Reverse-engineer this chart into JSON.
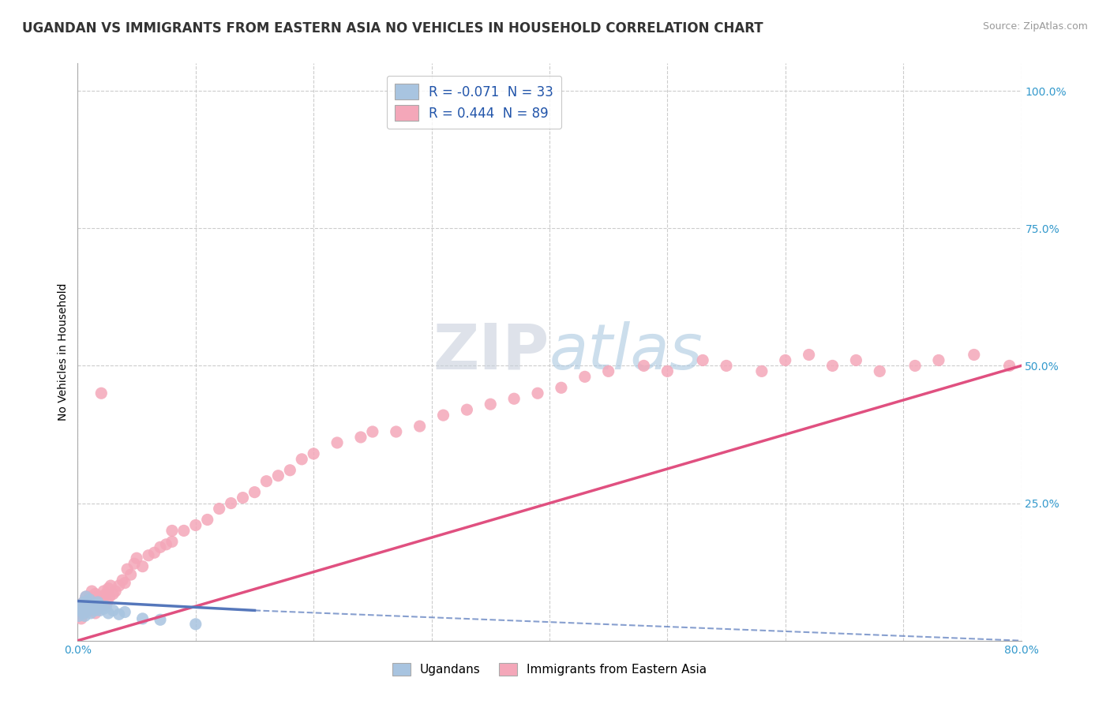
{
  "title": "UGANDAN VS IMMIGRANTS FROM EASTERN ASIA NO VEHICLES IN HOUSEHOLD CORRELATION CHART",
  "source_text": "Source: ZipAtlas.com",
  "ylabel": "No Vehicles in Household",
  "xlim": [
    0.0,
    0.8
  ],
  "ylim": [
    0.0,
    1.05
  ],
  "ugandan_R": -0.071,
  "ugandan_N": 33,
  "eastern_asia_R": 0.444,
  "eastern_asia_N": 89,
  "ugandan_color": "#a8c4e0",
  "eastern_asia_color": "#f4a7b9",
  "ugandan_line_color": "#5577bb",
  "eastern_asia_line_color": "#e05080",
  "background_color": "#ffffff",
  "grid_color": "#cccccc",
  "watermark_color": "#d0d8e8",
  "ugandan_x": [
    0.001,
    0.002,
    0.003,
    0.004,
    0.005,
    0.005,
    0.006,
    0.007,
    0.007,
    0.008,
    0.008,
    0.009,
    0.01,
    0.01,
    0.011,
    0.012,
    0.013,
    0.014,
    0.015,
    0.016,
    0.017,
    0.018,
    0.019,
    0.02,
    0.022,
    0.024,
    0.026,
    0.03,
    0.035,
    0.04,
    0.055,
    0.07,
    0.1
  ],
  "ugandan_y": [
    0.045,
    0.055,
    0.06,
    0.065,
    0.05,
    0.07,
    0.045,
    0.06,
    0.08,
    0.055,
    0.07,
    0.065,
    0.06,
    0.075,
    0.05,
    0.065,
    0.058,
    0.068,
    0.055,
    0.06,
    0.07,
    0.065,
    0.055,
    0.06,
    0.058,
    0.062,
    0.05,
    0.055,
    0.048,
    0.052,
    0.04,
    0.038,
    0.03
  ],
  "eastern_asia_x": [
    0.002,
    0.003,
    0.004,
    0.005,
    0.005,
    0.006,
    0.007,
    0.007,
    0.008,
    0.008,
    0.009,
    0.01,
    0.01,
    0.011,
    0.012,
    0.012,
    0.013,
    0.014,
    0.015,
    0.015,
    0.016,
    0.017,
    0.018,
    0.019,
    0.02,
    0.021,
    0.022,
    0.023,
    0.024,
    0.025,
    0.026,
    0.027,
    0.028,
    0.03,
    0.032,
    0.035,
    0.038,
    0.04,
    0.042,
    0.045,
    0.048,
    0.05,
    0.055,
    0.06,
    0.065,
    0.07,
    0.075,
    0.08,
    0.09,
    0.1,
    0.11,
    0.12,
    0.13,
    0.14,
    0.15,
    0.16,
    0.17,
    0.18,
    0.19,
    0.2,
    0.22,
    0.24,
    0.25,
    0.27,
    0.29,
    0.31,
    0.33,
    0.35,
    0.37,
    0.39,
    0.41,
    0.43,
    0.45,
    0.48,
    0.5,
    0.53,
    0.55,
    0.58,
    0.6,
    0.62,
    0.64,
    0.66,
    0.68,
    0.71,
    0.73,
    0.76,
    0.79,
    0.02,
    0.08
  ],
  "eastern_asia_y": [
    0.05,
    0.04,
    0.06,
    0.055,
    0.07,
    0.05,
    0.065,
    0.08,
    0.055,
    0.07,
    0.06,
    0.065,
    0.08,
    0.055,
    0.07,
    0.09,
    0.06,
    0.075,
    0.05,
    0.085,
    0.065,
    0.08,
    0.06,
    0.07,
    0.08,
    0.075,
    0.09,
    0.065,
    0.085,
    0.07,
    0.095,
    0.08,
    0.1,
    0.085,
    0.09,
    0.1,
    0.11,
    0.105,
    0.13,
    0.12,
    0.14,
    0.15,
    0.135,
    0.155,
    0.16,
    0.17,
    0.175,
    0.18,
    0.2,
    0.21,
    0.22,
    0.24,
    0.25,
    0.26,
    0.27,
    0.29,
    0.3,
    0.31,
    0.33,
    0.34,
    0.36,
    0.37,
    0.38,
    0.38,
    0.39,
    0.41,
    0.42,
    0.43,
    0.44,
    0.45,
    0.46,
    0.48,
    0.49,
    0.5,
    0.49,
    0.51,
    0.5,
    0.49,
    0.51,
    0.52,
    0.5,
    0.51,
    0.49,
    0.5,
    0.51,
    0.52,
    0.5,
    0.45,
    0.2
  ],
  "title_fontsize": 12,
  "label_fontsize": 10,
  "tick_fontsize": 10,
  "legend_r_label_1": "R = -0.071  N = 33",
  "legend_r_label_2": "R = 0.444  N = 89"
}
